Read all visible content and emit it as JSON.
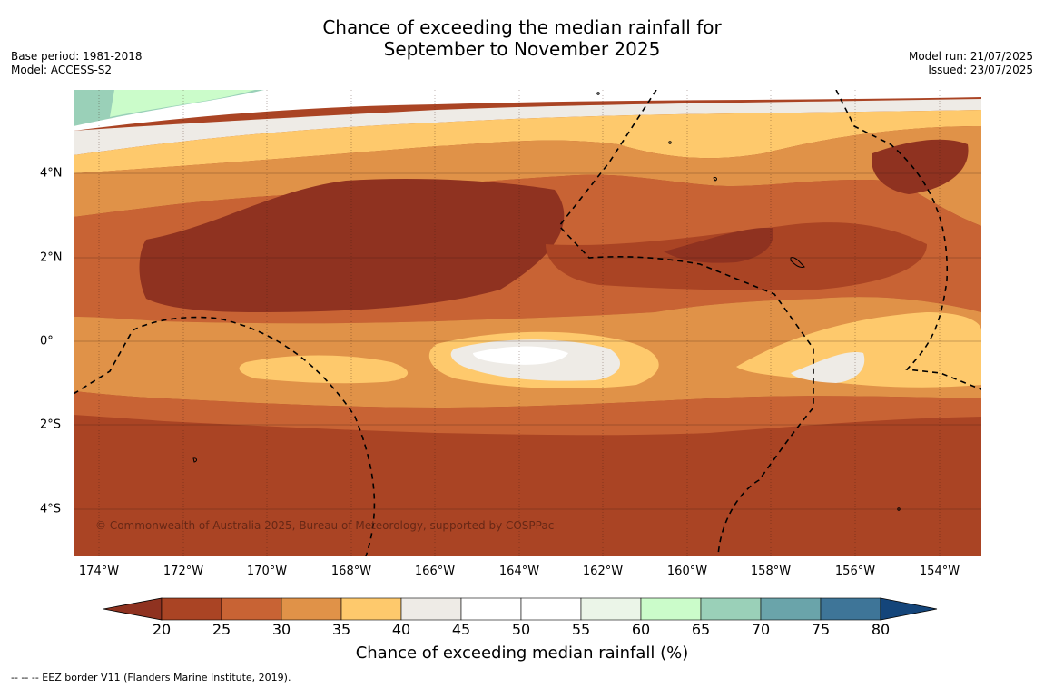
{
  "header": {
    "title_line1": "Chance of exceeding the median rainfall for",
    "title_line2": "September to November 2025",
    "base_period": "Base period: 1981-2018",
    "model": "Model: ACCESS-S2",
    "model_run": "Model run: 21/07/2025",
    "issued": "Issued: 23/07/2025"
  },
  "map": {
    "longitude_labels": [
      "174°W",
      "172°W",
      "170°W",
      "168°W",
      "166°W",
      "164°W",
      "162°W",
      "160°W",
      "158°W",
      "156°W",
      "154°W"
    ],
    "latitude_labels": [
      "4°N",
      "2°N",
      "0°",
      "2°S",
      "4°S"
    ],
    "copyright": "© Commonwealth of Australia 2025, Bureau of Meteorology, supported by COSPPac",
    "eez_style": "dashed-black",
    "coastline_color": "#000000"
  },
  "colorbar": {
    "ticks": [
      "20",
      "25",
      "30",
      "35",
      "40",
      "45",
      "50",
      "55",
      "60",
      "65",
      "70",
      "75",
      "80"
    ],
    "colors": {
      "below_20": "#8f3220",
      "20-25": "#aa4424",
      "25-30": "#c86334",
      "30-35": "#e09248",
      "35-40": "#fec96c",
      "40-45": "#eeebe6",
      "45-50": "#ffffff",
      "50-55": "#ffffff",
      "55-60": "#ebf5e8",
      "60-65": "#cbfcca",
      "65-70": "#9ad0b8",
      "70-75": "#6aa4aa",
      "75-80": "#3e7598",
      "above_80": "#14457a"
    },
    "label": "Chance of exceeding median rainfall (%)"
  },
  "footnote": "--  --  -- EEZ border V11 (Flanders Marine Institute, 2019)."
}
